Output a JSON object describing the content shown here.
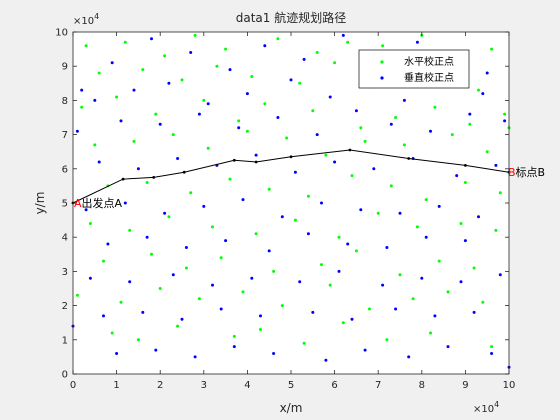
{
  "chart_data": {
    "type": "scatter",
    "title": "data1 航迹规划路径",
    "xlabel": "x/m",
    "ylabel": "y/m",
    "xlim": [
      0,
      100000
    ],
    "ylim": [
      0,
      100000
    ],
    "xticks": [
      0,
      10000,
      20000,
      30000,
      40000,
      50000,
      60000,
      70000,
      80000,
      90000,
      100000
    ],
    "yticks": [
      0,
      10000,
      20000,
      30000,
      40000,
      50000,
      60000,
      70000,
      80000,
      90000,
      100000
    ],
    "xtick_labels": [
      "0",
      "1",
      "2",
      "3",
      "4",
      "5",
      "6",
      "7",
      "8",
      "9",
      "10"
    ],
    "ytick_labels": [
      "0",
      "1",
      "2",
      "3",
      "4",
      "5",
      "6",
      "7",
      "8",
      "9",
      "10"
    ],
    "x_exponent": "×10^4",
    "y_exponent": "×10^4",
    "grid": false,
    "legend_position": "top-right",
    "legend": [
      {
        "name": "水平校正点",
        "color": "#00ff00"
      },
      {
        "name": "垂直校正点",
        "color": "#0000ff"
      }
    ],
    "annotations": [
      {
        "text": "A出发点A",
        "x": 0,
        "y": 50000,
        "color": "#ff0000"
      },
      {
        "text": "B标点B",
        "x": 100000,
        "y": 59000,
        "color": "#ff0000"
      }
    ],
    "path": {
      "color": "#000000",
      "x": [
        0,
        11500,
        18500,
        25500,
        37000,
        42000,
        50000,
        63500,
        77000,
        90000,
        100000
      ],
      "y": [
        50000,
        57000,
        57500,
        59000,
        62500,
        62000,
        63500,
        65500,
        63000,
        61000,
        59000
      ]
    },
    "series": [
      {
        "name": "水平校正点",
        "color": "#00ff00",
        "x": [
          3000,
          12000,
          21000,
          28000,
          35000,
          47000,
          56000,
          63000,
          71000,
          80000,
          88000,
          96000,
          6000,
          16000,
          25000,
          33000,
          41000,
          52000,
          60000,
          69000,
          77000,
          85000,
          93000,
          2000,
          10000,
          19000,
          30000,
          38000,
          44000,
          55000,
          66000,
          74000,
          83000,
          91000,
          99000,
          5000,
          14000,
          23000,
          31000,
          40000,
          49000,
          58000,
          67000,
          76000,
          87000,
          95000,
          8000,
          17000,
          27000,
          36000,
          45000,
          54000,
          64000,
          73000,
          81000,
          90000,
          98000,
          4000,
          13000,
          22000,
          32000,
          42000,
          51000,
          61000,
          70000,
          79000,
          89000,
          97000,
          7000,
          18000,
          26000,
          34000,
          46000,
          57000,
          65000,
          75000,
          84000,
          92000,
          1000,
          11000,
          20000,
          29000,
          39000,
          48000,
          59000,
          68000,
          78000,
          86000,
          94000,
          9000,
          15000,
          24000,
          37000,
          43000,
          53000,
          62000,
          72000,
          82000,
          96000,
          100000
        ],
        "y": [
          96000,
          97000,
          93000,
          99000,
          95000,
          98000,
          94000,
          97000,
          96000,
          99000,
          93000,
          95000,
          88000,
          89000,
          86000,
          90000,
          87000,
          85000,
          91000,
          84000,
          88000,
          86000,
          83000,
          78000,
          81000,
          76000,
          80000,
          74000,
          79000,
          77000,
          72000,
          75000,
          78000,
          73000,
          76000,
          67000,
          68000,
          70000,
          66000,
          71000,
          69000,
          64000,
          68000,
          67000,
          70000,
          65000,
          55000,
          56000,
          53000,
          57000,
          54000,
          52000,
          58000,
          55000,
          51000,
          56000,
          53000,
          44000,
          42000,
          46000,
          43000,
          41000,
          45000,
          40000,
          47000,
          43000,
          44000,
          42000,
          33000,
          35000,
          31000,
          34000,
          30000,
          32000,
          36000,
          29000,
          33000,
          31000,
          23000,
          21000,
          25000,
          22000,
          24000,
          20000,
          26000,
          19000,
          22000,
          24000,
          21000,
          12000,
          10000,
          14000,
          11000,
          13000,
          9000,
          15000,
          10000,
          12000,
          8000,
          72000
        ]
      },
      {
        "name": "垂直校正点",
        "color": "#0000ff",
        "x": [
          2000,
          9000,
          18000,
          27000,
          36000,
          44000,
          53000,
          62000,
          70000,
          79000,
          87000,
          95000,
          5000,
          14000,
          22000,
          31000,
          40000,
          50000,
          59000,
          68000,
          76000,
          85000,
          94000,
          1000,
          11000,
          20000,
          29000,
          38000,
          47000,
          56000,
          65000,
          73000,
          82000,
          91000,
          99000,
          6000,
          15000,
          24000,
          33000,
          42000,
          51000,
          60000,
          69000,
          78000,
          88000,
          97000,
          3000,
          12000,
          21000,
          30000,
          39000,
          48000,
          57000,
          66000,
          75000,
          84000,
          93000,
          8000,
          17000,
          26000,
          35000,
          45000,
          54000,
          63000,
          72000,
          81000,
          90000,
          4000,
          13000,
          23000,
          32000,
          41000,
          52000,
          61000,
          71000,
          80000,
          89000,
          98000,
          7000,
          16000,
          25000,
          34000,
          43000,
          55000,
          64000,
          74000,
          83000,
          92000,
          10000,
          19000,
          28000,
          37000,
          46000,
          58000,
          67000,
          77000,
          86000,
          96000,
          0,
          100000
        ],
        "y": [
          83000,
          91000,
          98000,
          94000,
          89000,
          96000,
          92000,
          99000,
          90000,
          97000,
          94000,
          88000,
          80000,
          83000,
          85000,
          79000,
          82000,
          86000,
          81000,
          84000,
          80000,
          87000,
          82000,
          71000,
          74000,
          73000,
          76000,
          72000,
          75000,
          70000,
          77000,
          73000,
          71000,
          76000,
          74000,
          62000,
          60000,
          63000,
          61000,
          64000,
          59000,
          62000,
          60000,
          63000,
          58000,
          61000,
          48000,
          50000,
          47000,
          49000,
          51000,
          46000,
          50000,
          48000,
          47000,
          49000,
          46000,
          38000,
          40000,
          37000,
          39000,
          36000,
          41000,
          38000,
          37000,
          40000,
          39000,
          28000,
          27000,
          29000,
          26000,
          28000,
          27000,
          30000,
          26000,
          28000,
          27000,
          29000,
          17000,
          18000,
          16000,
          19000,
          17000,
          18000,
          16000,
          19000,
          17000,
          18000,
          6000,
          7000,
          5000,
          8000,
          6000,
          4000,
          7000,
          5000,
          8000,
          6000,
          14000,
          2000
        ]
      }
    ]
  }
}
